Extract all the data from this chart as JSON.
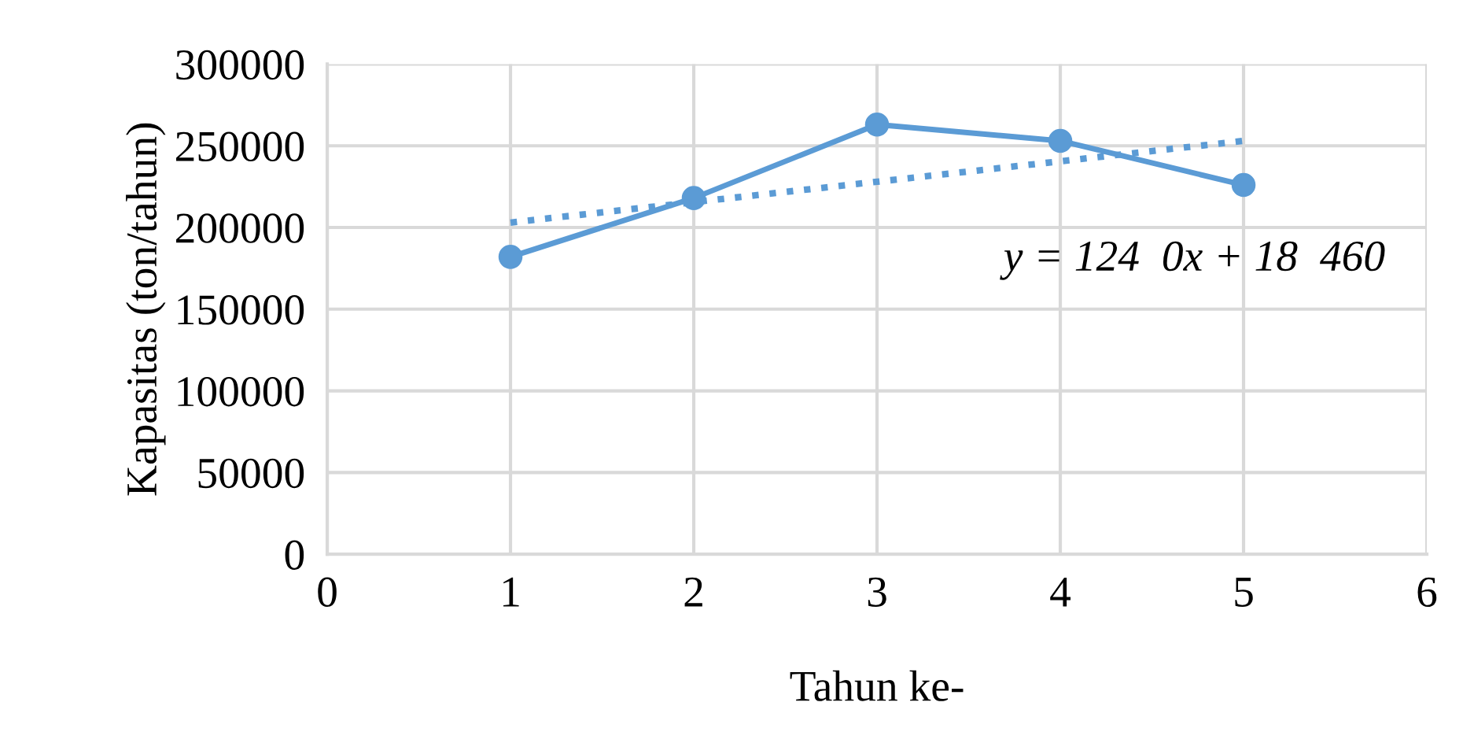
{
  "chart_data": {
    "type": "line",
    "xlabel": "Tahun ke-",
    "ylabel": "Kapasitas (ton/tahun)",
    "xlim": [
      0,
      6
    ],
    "xticks": [
      0,
      1,
      2,
      3,
      4,
      5,
      6
    ],
    "ylim": [
      0,
      300000
    ],
    "yticks": [
      0,
      50000,
      100000,
      150000,
      200000,
      250000,
      300000
    ],
    "grid": true,
    "legend": false,
    "series": [
      {
        "color": "#5b9bd5",
        "x": [
          1,
          2,
          3,
          4,
          5
        ],
        "values": [
          182000,
          218000,
          263000,
          253000,
          226000
        ],
        "marker": "circle",
        "line_style": "solid"
      },
      {
        "color": "#5b9bd5",
        "x": [
          1,
          5
        ],
        "values": [
          203000,
          253000
        ],
        "marker": "none",
        "line_style": "dotted"
      }
    ],
    "annotations": [
      "y = 124  0x + 18  460"
    ]
  }
}
